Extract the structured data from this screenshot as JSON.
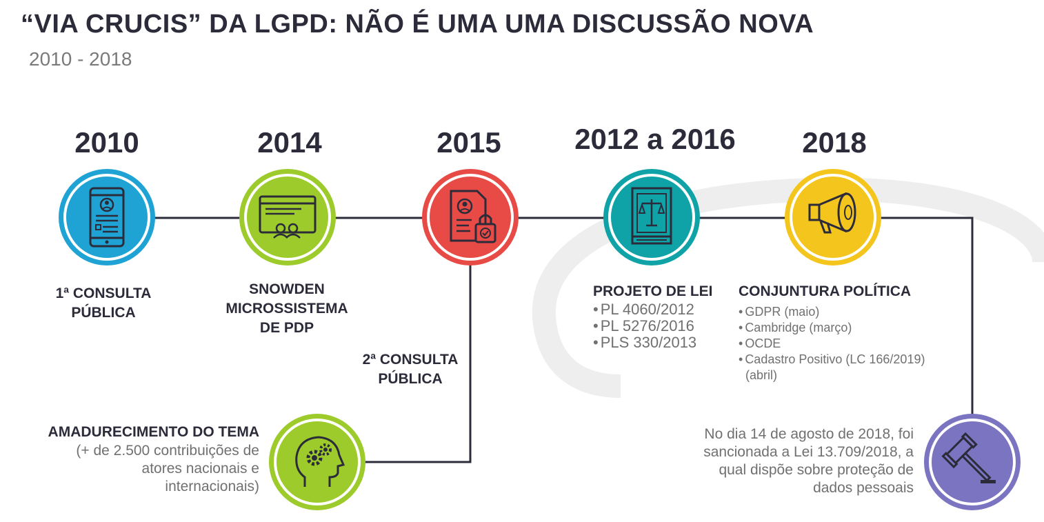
{
  "title": "“VIA CRUCIS” DA LGPD: NÃO É UMA UMA DISCUSSÃO NOVA",
  "subtitle": "2010 - 2018",
  "colors": {
    "blue": "#1ea3d4",
    "green": "#9ccb2b",
    "red": "#e84a45",
    "teal": "#0fa3a7",
    "yellow": "#f4c51c",
    "purple": "#7b74c1",
    "line": "#2b2b3a"
  },
  "milestones": [
    {
      "year": "2010",
      "label_lines": [
        "1ª CONSULTA",
        "PÚBLICA"
      ],
      "icon": "phone-profile-icon"
    },
    {
      "year": "2014",
      "label_lines": [
        "SNOWDEN",
        "MICROSSISTEMA",
        "DE PDP"
      ],
      "icon": "browser-users-icon"
    },
    {
      "year": "2015",
      "label_lines": [
        "2ª CONSULTA",
        "PÚBLICA"
      ],
      "icon": "document-lock-icon"
    },
    {
      "year": "2012 a 2016",
      "label": "PROJETO DE LEI",
      "bullets": [
        "PL 4060/2012",
        "PL 5276/2016",
        "PLS 330/2013"
      ],
      "icon": "law-book-scales-icon"
    },
    {
      "year": "2018",
      "label": "CONJUNTURA POLÍTICA",
      "bullets": [
        "GDPR (maio)",
        "Cambridge (março)",
        "OCDE",
        "Cadastro Positivo (LC 166/2019)"
      ],
      "bullet_continuation": "(abril)",
      "icon": "megaphone-icon"
    }
  ],
  "maturation": {
    "label": "AMADURECIMENTO DO TEMA",
    "text_lines": [
      "(+ de 2.500 contribuições de",
      "atores nacionais e",
      "internacionais)"
    ],
    "icon": "head-gears-icon"
  },
  "final": {
    "text_lines": [
      "No dia 14 de agosto de 2018, foi",
      "sancionada a Lei 13.709/2018, a",
      "qual dispõe sobre proteção de",
      "dados pessoais"
    ],
    "icon": "gavel-icon"
  }
}
